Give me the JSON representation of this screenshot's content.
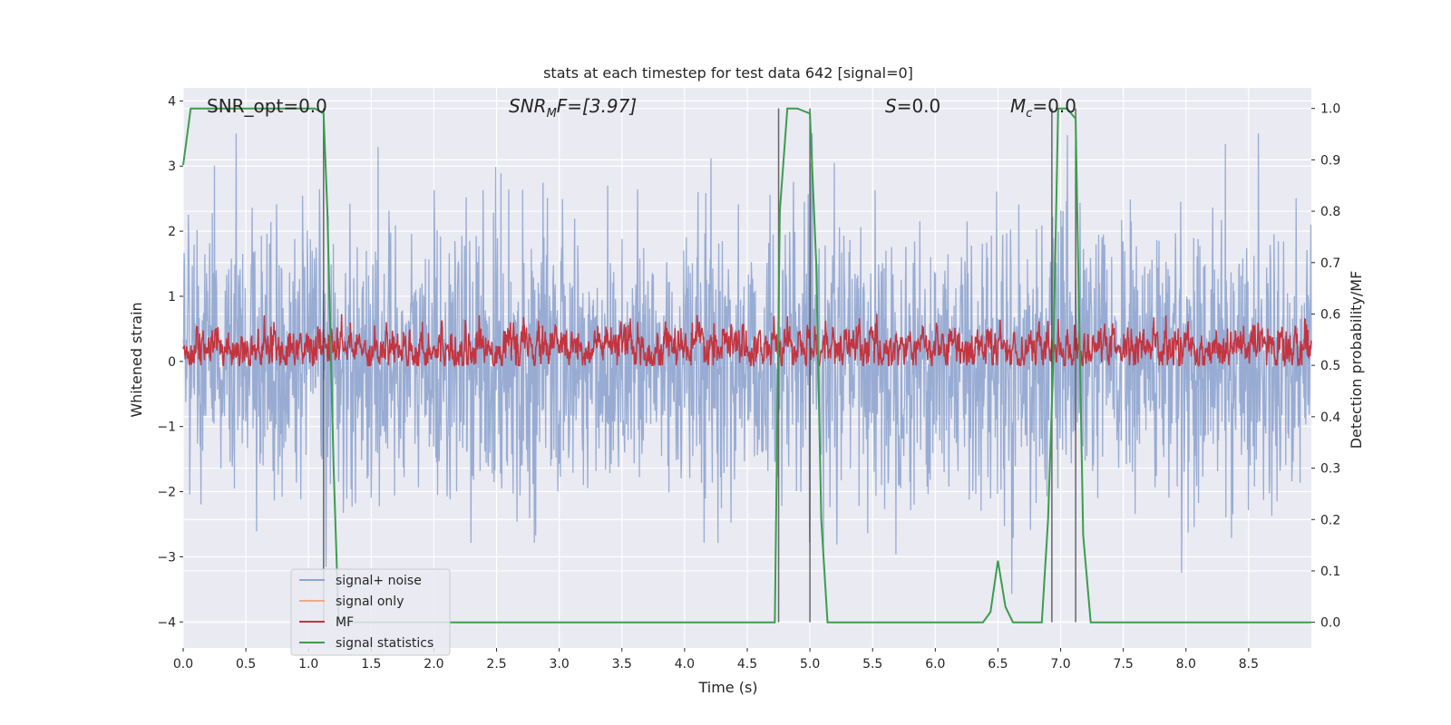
{
  "chart_data": {
    "type": "line",
    "title": "stats at each timestep for test data 642 [signal=0]",
    "xlabel": "Time (s)",
    "ylabel": "Whitened strain",
    "y2label": "Detection probability/MF",
    "xlim": [
      0.0,
      9.0
    ],
    "ylim": [
      -4.4,
      4.2
    ],
    "y2lim": [
      -0.05,
      1.04
    ],
    "xticks": [
      "0.0",
      "0.5",
      "1.0",
      "1.5",
      "2.0",
      "2.5",
      "3.0",
      "3.5",
      "4.0",
      "4.5",
      "5.0",
      "5.5",
      "6.0",
      "6.5",
      "7.0",
      "7.5",
      "8.0",
      "8.5"
    ],
    "yticks": [
      "4",
      "3",
      "2",
      "1",
      "0",
      "−1",
      "−2",
      "−3",
      "−4"
    ],
    "y2ticks": [
      "1.0",
      "0.9",
      "0.8",
      "0.7",
      "0.6",
      "0.5",
      "0.4",
      "0.3",
      "0.2",
      "0.1",
      "0.0"
    ],
    "annotations": {
      "snr_opt": "SNR_opt=0.0",
      "snr_mf_base": "SNR",
      "snr_mf_sub": "M",
      "snr_mf_rest": "F=[3.97]",
      "s_italic": "S",
      "s_rest": "=0.0",
      "mc_italic": "M",
      "mc_sub": "c",
      "mc_rest": "=0.0"
    },
    "legend": {
      "position": "lower-left",
      "entries": [
        {
          "label": "signal+ noise",
          "color": "#8fa5cf"
        },
        {
          "label": "signal only",
          "color": "#eea98b"
        },
        {
          "label": "MF",
          "color": "#c4343f"
        },
        {
          "label": "signal statistics",
          "color": "#3a9d4e"
        }
      ]
    },
    "grid": true,
    "series": [
      {
        "name": "signal+ noise",
        "color": "#8fa5cf",
        "description_values": "noise-like whitened strain, amplitude mostly within ±2.5, peaks to ±3.5"
      },
      {
        "name": "MF",
        "color": "#c4343f",
        "axis": "right",
        "baseline": 0.535,
        "range": [
          0.5,
          0.6
        ]
      },
      {
        "name": "signal statistics",
        "color": "#3a9d4e",
        "axis": "right",
        "x": [
          0.0,
          0.06,
          0.5,
          1.0,
          1.05,
          1.12,
          1.15,
          1.2,
          1.24,
          1.3,
          4.68,
          4.72,
          4.76,
          4.82,
          4.9,
          5.0,
          5.05,
          5.09,
          5.14,
          6.0,
          6.38,
          6.44,
          6.5,
          6.56,
          6.62,
          6.7,
          6.85,
          6.9,
          6.94,
          6.98,
          7.05,
          7.12,
          7.14,
          7.18,
          7.24,
          7.3,
          9.0
        ],
        "values": [
          0.89,
          1.0,
          1.0,
          1.0,
          1.0,
          0.99,
          0.8,
          0.3,
          0.0,
          0.0,
          0.0,
          0.0,
          0.8,
          1.0,
          1.0,
          0.99,
          0.7,
          0.2,
          0.0,
          0.0,
          0.0,
          0.02,
          0.12,
          0.03,
          0.0,
          0.0,
          0.0,
          0.2,
          0.5,
          1.0,
          1.0,
          0.98,
          0.7,
          0.17,
          0.0,
          0.0,
          0.0
        ]
      }
    ],
    "vertical_lines_x": [
      1.12,
      4.75,
      5.0,
      6.93,
      7.12
    ]
  }
}
